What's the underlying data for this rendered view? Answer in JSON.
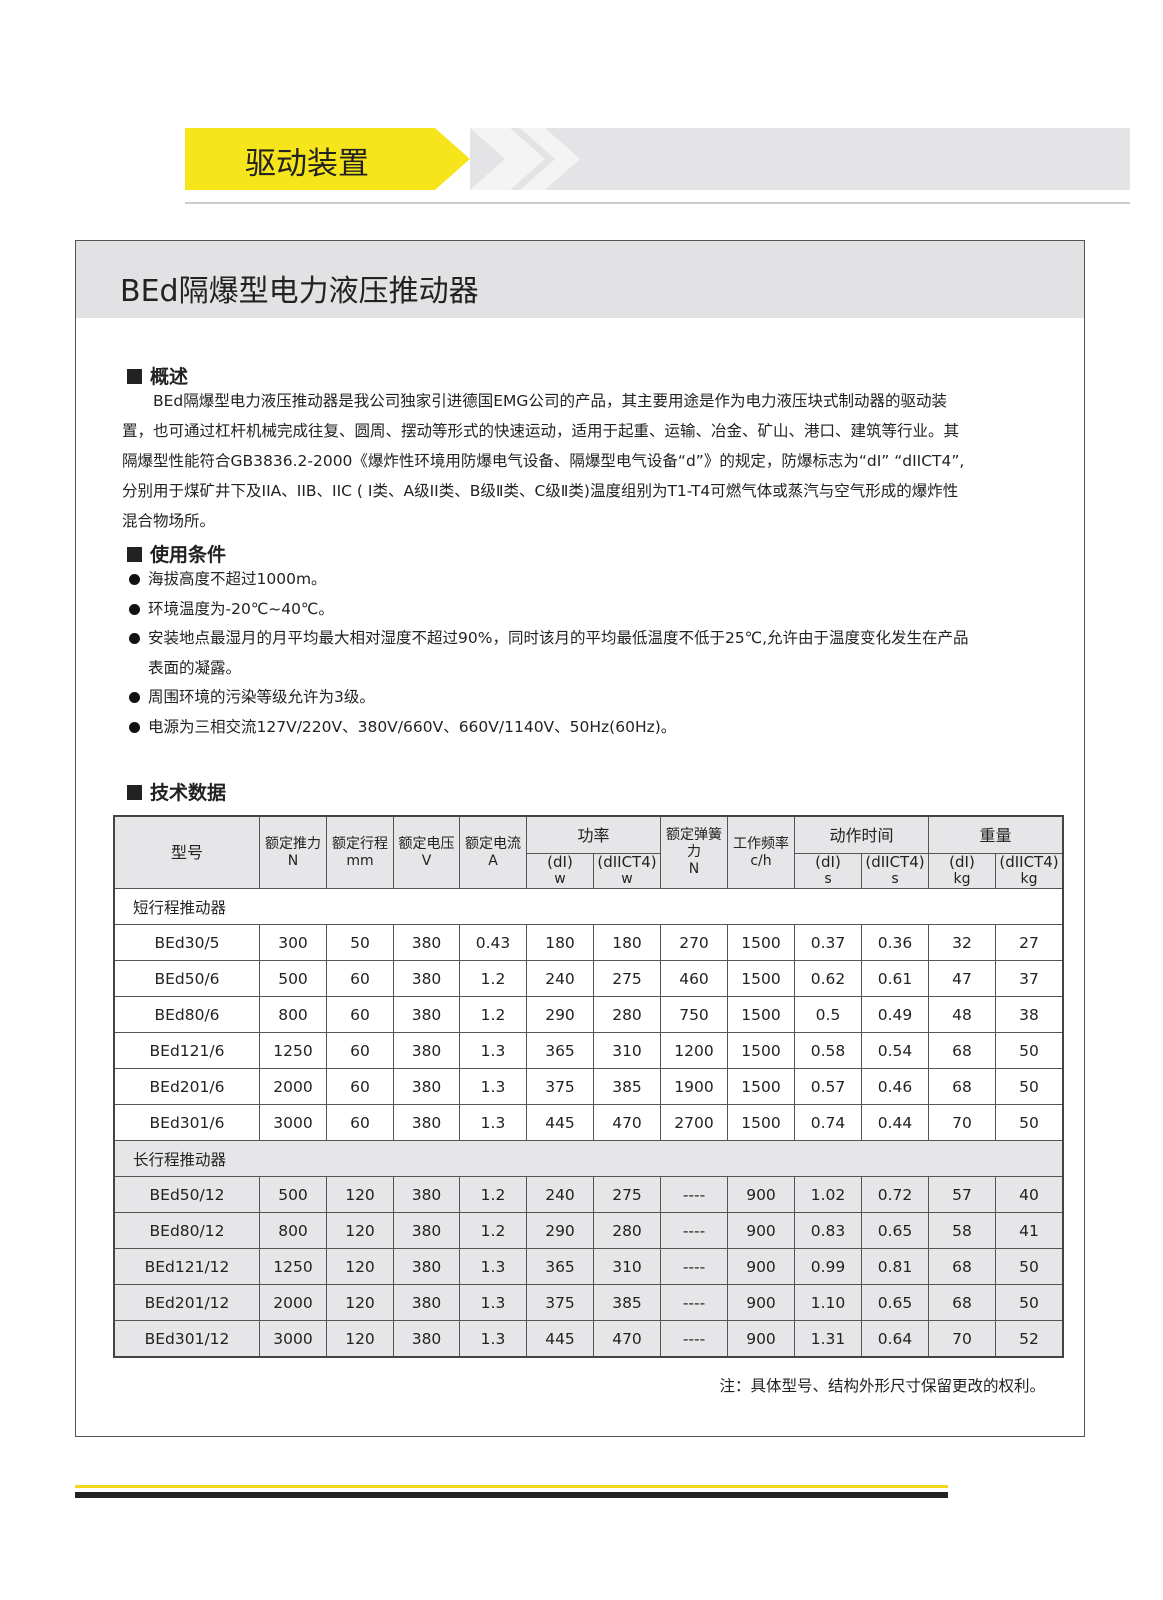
{
  "header": {
    "section": "驱动装置"
  },
  "title": "BEd隔爆型电力液压推动器",
  "overview": {
    "heading": "概述",
    "text": "BEd隔爆型电力液压推动器是我公司独家引进德国EMG公司的产品，其主要用途是作为电力液压块式制动器的驱动装置，也可通过杠杆机械完成往复、圆周、摆动等形式的快速运动，适用于起重、运输、冶金、矿山、港口、建筑等行业。其隔爆型性能符合GB3836.2-2000《爆炸性环境用防爆电气设备、隔爆型电气设备“d”》的规定，防爆标志为“dI” “dIICT4”,分别用于煤矿井下及IIA、IIB、IIC ( I类、A级II类、B级Ⅱ类、C级Ⅱ类)温度组别为T1-T4可燃气体或蒸汽与空气形成的爆炸性混合物场所。"
  },
  "conditions": {
    "heading": "使用条件",
    "items": [
      "海拔高度不超过1000m。",
      "环境温度为-20℃~40℃。",
      "安装地点最湿月的月平均最大相对湿度不超过90%，同时该月的平均最低温度不低于25℃,允许由于温度变化发生在产品表面的凝露。",
      "周围环境的污染等级允许为3级。",
      "电源为三相交流127V/220V、380V/660V、660V/1140V、50Hz(60Hz)。"
    ]
  },
  "tech": {
    "heading": "技术数据",
    "table": {
      "columns": [
        {
          "label": "型号"
        },
        {
          "label": "额定推力",
          "unit": "N"
        },
        {
          "label": "额定行程",
          "unit": "mm"
        },
        {
          "label": "额定电压",
          "unit": "V"
        },
        {
          "label": "额定电流",
          "unit": "A"
        },
        {
          "label": "功率",
          "sub": [
            {
              "label": "(dI)",
              "unit": "w"
            },
            {
              "label": "(dIICT4)",
              "unit": "w"
            }
          ]
        },
        {
          "label": "额定弹簧力",
          "unit": "N"
        },
        {
          "label": "工作频率",
          "unit": "c/h"
        },
        {
          "label": "动作时间",
          "sub": [
            {
              "label": "(dI)",
              "unit": "s"
            },
            {
              "label": "(dIICT4)",
              "unit": "s"
            }
          ]
        },
        {
          "label": "重量",
          "sub": [
            {
              "label": "(dI)",
              "unit": "kg"
            },
            {
              "label": "(dIICT4)",
              "unit": "kg"
            }
          ]
        }
      ],
      "groups": [
        {
          "name": "短行程推动器",
          "rows": [
            [
              "BEd30/5",
              "300",
              "50",
              "380",
              "0.43",
              "180",
              "180",
              "270",
              "1500",
              "0.37",
              "0.36",
              "32",
              "27"
            ],
            [
              "BEd50/6",
              "500",
              "60",
              "380",
              "1.2",
              "240",
              "275",
              "460",
              "1500",
              "0.62",
              "0.61",
              "47",
              "37"
            ],
            [
              "BEd80/6",
              "800",
              "60",
              "380",
              "1.2",
              "290",
              "280",
              "750",
              "1500",
              "0.5",
              "0.49",
              "48",
              "38"
            ],
            [
              "BEd121/6",
              "1250",
              "60",
              "380",
              "1.3",
              "365",
              "310",
              "1200",
              "1500",
              "0.58",
              "0.54",
              "68",
              "50"
            ],
            [
              "BEd201/6",
              "2000",
              "60",
              "380",
              "1.3",
              "375",
              "385",
              "1900",
              "1500",
              "0.57",
              "0.46",
              "68",
              "50"
            ],
            [
              "BEd301/6",
              "3000",
              "60",
              "380",
              "1.3",
              "445",
              "470",
              "2700",
              "1500",
              "0.74",
              "0.44",
              "70",
              "50"
            ]
          ]
        },
        {
          "name": "长行程推动器",
          "rows": [
            [
              "BEd50/12",
              "500",
              "120",
              "380",
              "1.2",
              "240",
              "275",
              "----",
              "900",
              "1.02",
              "0.72",
              "57",
              "40"
            ],
            [
              "BEd80/12",
              "800",
              "120",
              "380",
              "1.2",
              "290",
              "280",
              "----",
              "900",
              "0.83",
              "0.65",
              "58",
              "41"
            ],
            [
              "BEd121/12",
              "1250",
              "120",
              "380",
              "1.3",
              "365",
              "310",
              "----",
              "900",
              "0.99",
              "0.81",
              "68",
              "50"
            ],
            [
              "BEd201/12",
              "2000",
              "120",
              "380",
              "1.3",
              "375",
              "385",
              "----",
              "900",
              "1.10",
              "0.65",
              "68",
              "50"
            ],
            [
              "BEd301/12",
              "3000",
              "120",
              "380",
              "1.3",
              "445",
              "470",
              "----",
              "900",
              "1.31",
              "0.64",
              "70",
              "52"
            ]
          ]
        }
      ]
    }
  },
  "note": "注：具体型号、结构外形尺寸保留更改的权利。"
}
